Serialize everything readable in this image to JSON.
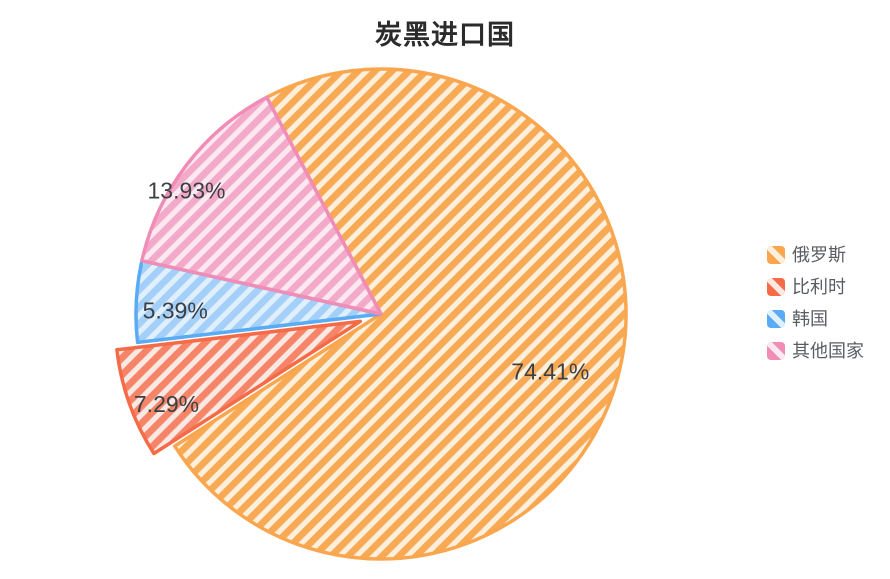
{
  "title": "炭黑进口国",
  "chart_data": {
    "type": "pie",
    "title": "炭黑进口国",
    "legend_position": "right",
    "start_angle_deg": 117.8,
    "label_color": "#3c4045",
    "slices": [
      {
        "name": "俄罗斯",
        "value": 74.41,
        "label": "74.41%",
        "color": "#F9A64F",
        "stripe": "#F8A954",
        "bg": "#FCF0DC",
        "explode": 0,
        "label_r": 0.73,
        "label_da": -4
      },
      {
        "name": "比利时",
        "value": 7.29,
        "label": "7.29%",
        "color": "#F56B47",
        "stripe": "#F58468",
        "bg": "#FAE9E3",
        "explode": 22,
        "label_r": 0.86,
        "label_da": 3.5
      },
      {
        "name": "韩国",
        "value": 5.39,
        "label": "5.39%",
        "color": "#59ABF4",
        "stripe": "#A3CFF8",
        "bg": "#E0EFFC",
        "explode": 0,
        "label_r": 0.84,
        "label_da": 2
      },
      {
        "name": "其他国家",
        "value": 13.93,
        "label": "13.93%",
        "color": "#F08CB6",
        "stripe": "#F3A9C8",
        "bg": "#FBE8F1",
        "explode": 0,
        "label_r": 0.94,
        "label_da": 5
      }
    ]
  }
}
